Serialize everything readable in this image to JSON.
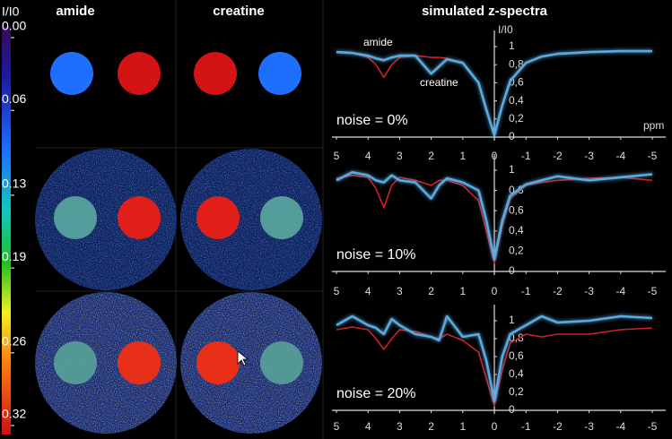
{
  "columns": [
    "amide",
    "creatine"
  ],
  "colorbar": {
    "label": "I/I0",
    "lim": [
      0,
      0.32
    ],
    "ticks": [
      {
        "value": 0,
        "label": "0.00"
      },
      0.06,
      0.13,
      0.19,
      0.26,
      0.32
    ]
  },
  "spectra_title": "simulated z-spectra",
  "chart_data": [
    {
      "type": "line",
      "ylabel": "I/I0",
      "xlabel": "ppm",
      "annotations": [
        "noise = 0%",
        "amide",
        "creatine"
      ],
      "x": [
        5,
        4.5,
        4,
        3.75,
        3.5,
        3.25,
        3,
        2.5,
        2,
        1.75,
        1.5,
        1,
        0.5,
        0.25,
        0,
        -0.25,
        -0.5,
        -1,
        -1.5,
        -2,
        -3,
        -4,
        -5
      ],
      "xlim": [
        5,
        -5
      ],
      "xticks": [
        5,
        4,
        3,
        2,
        1,
        0,
        -1,
        -2,
        -3,
        -4,
        -5
      ],
      "ylim": [
        0,
        1
      ],
      "yticks": [
        0,
        {
          "value": 0.2,
          "label": "0,2"
        },
        {
          "value": 0.4,
          "label": "0,4"
        },
        {
          "value": 0.6,
          "label": "0,6"
        },
        {
          "value": 0.8,
          "label": "0,8"
        },
        1
      ],
      "series": [
        {
          "color": "#d0202a",
          "values": [
            0.94,
            0.93,
            0.88,
            0.8,
            0.66,
            0.8,
            0.88,
            0.9,
            0.88,
            0.88,
            0.87,
            0.82,
            0.6,
            0.3,
            0.02,
            0.35,
            0.62,
            0.82,
            0.89,
            0.92,
            0.94,
            0.95,
            0.95
          ]
        },
        {
          "color": "#5aaae0",
          "values": [
            0.94,
            0.93,
            0.9,
            0.87,
            0.85,
            0.88,
            0.9,
            0.9,
            0.7,
            0.78,
            0.86,
            0.82,
            0.6,
            0.3,
            0.02,
            0.35,
            0.62,
            0.82,
            0.89,
            0.92,
            0.94,
            0.95,
            0.95
          ]
        }
      ]
    },
    {
      "type": "line",
      "annotations": [
        "noise = 10%"
      ],
      "x": [
        5,
        4.5,
        4,
        3.75,
        3.5,
        3.25,
        3,
        2.5,
        2,
        1.75,
        1.5,
        1,
        0.5,
        0.25,
        0,
        -0.25,
        -0.5,
        -1,
        -1.5,
        -2,
        -3,
        -4,
        -5
      ],
      "xlim": [
        5,
        -5
      ],
      "xticks": [
        5,
        4,
        3,
        2,
        1,
        0,
        -1,
        -2,
        -3,
        -4,
        -5
      ],
      "ylim": [
        0,
        1
      ],
      "yticks": [
        0,
        {
          "value": 0.2,
          "label": "0,2"
        },
        {
          "value": 0.4,
          "label": "0,4"
        },
        {
          "value": 0.6,
          "label": "0,6"
        },
        {
          "value": 0.8,
          "label": "0,8"
        },
        1
      ],
      "series": [
        {
          "color": "#d0202a",
          "values": [
            0.92,
            0.95,
            0.93,
            0.82,
            0.63,
            0.85,
            0.93,
            0.9,
            0.85,
            0.9,
            0.9,
            0.85,
            0.7,
            0.4,
            0.08,
            0.45,
            0.72,
            0.85,
            0.88,
            0.9,
            0.92,
            0.93,
            0.9
          ]
        },
        {
          "color": "#5aaae0",
          "values": [
            0.9,
            0.98,
            0.95,
            0.9,
            0.88,
            0.95,
            0.9,
            0.88,
            0.72,
            0.85,
            0.92,
            0.88,
            0.8,
            0.5,
            0.12,
            0.5,
            0.75,
            0.86,
            0.9,
            0.94,
            0.9,
            0.93,
            0.96
          ]
        }
      ]
    },
    {
      "type": "line",
      "annotations": [
        "noise = 20%"
      ],
      "x": [
        5,
        4.5,
        4,
        3.75,
        3.5,
        3.25,
        3,
        2.5,
        2,
        1.75,
        1.5,
        1,
        0.5,
        0.25,
        0,
        -0.25,
        -0.5,
        -1,
        -1.5,
        -2,
        -3,
        -4,
        -5
      ],
      "xlim": [
        5,
        -5
      ],
      "xticks": [
        5,
        4,
        3,
        2,
        1,
        0,
        -1,
        -2,
        -3,
        -4,
        -5
      ],
      "ylim": [
        0,
        1
      ],
      "yticks": [
        0,
        {
          "value": 0.2,
          "label": "0,2"
        },
        {
          "value": 0.4,
          "label": "0,4"
        },
        {
          "value": 0.6,
          "label": "0,6"
        },
        {
          "value": 0.8,
          "label": "0,8"
        },
        1
      ],
      "series": [
        {
          "color": "#d0202a",
          "values": [
            0.9,
            0.93,
            0.9,
            0.8,
            0.68,
            0.8,
            0.9,
            0.88,
            0.82,
            0.8,
            0.85,
            0.78,
            0.65,
            0.35,
            0.05,
            0.45,
            0.75,
            0.85,
            0.82,
            0.85,
            0.85,
            0.9,
            0.92
          ]
        },
        {
          "color": "#5aaae0",
          "values": [
            0.95,
            1.05,
            0.95,
            0.92,
            0.85,
            1.02,
            0.95,
            0.85,
            0.82,
            0.78,
            1.05,
            0.82,
            0.85,
            0.55,
            0.1,
            0.6,
            0.85,
            0.95,
            1.05,
            0.98,
            1.0,
            1.05,
            1.03
          ]
        }
      ]
    }
  ]
}
